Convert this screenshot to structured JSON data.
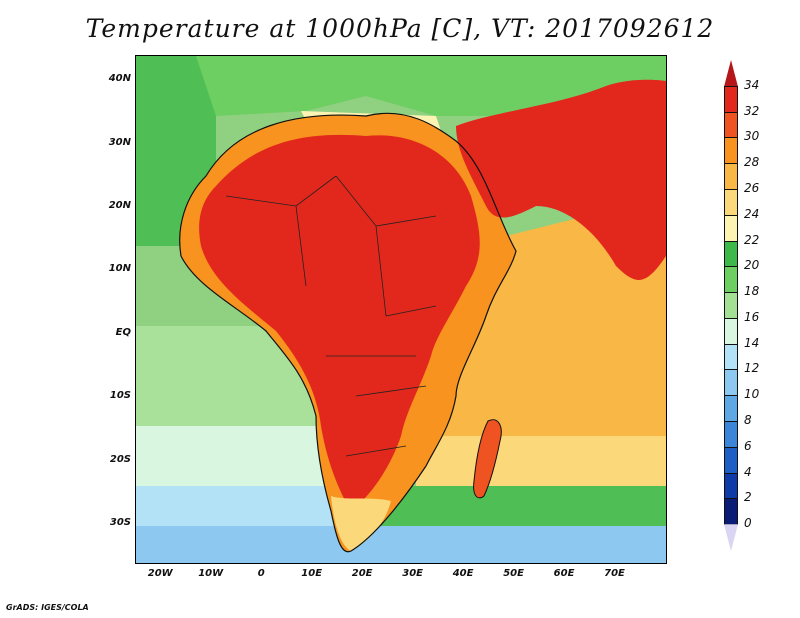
{
  "title": "Temperature at 1000hPa [C], VT: 2017092612",
  "credit": "GrADS: IGES/COLA",
  "map": {
    "lon_range": [
      -25,
      80
    ],
    "lat_range": [
      -36,
      44
    ],
    "lat_labels": [
      "40N",
      "30N",
      "20N",
      "10N",
      "EQ",
      "10S",
      "20S",
      "30S"
    ],
    "lat_values": [
      40,
      30,
      20,
      10,
      0,
      -10,
      -20,
      -30
    ],
    "lon_labels": [
      "20W",
      "10W",
      "0",
      "10E",
      "20E",
      "30E",
      "40E",
      "50E",
      "60E",
      "70E"
    ],
    "lon_values": [
      -20,
      -10,
      0,
      10,
      20,
      30,
      40,
      50,
      60,
      70
    ]
  },
  "colorbar": {
    "levels": [
      "34",
      "32",
      "30",
      "28",
      "26",
      "24",
      "22",
      "20",
      "18",
      "16",
      "14",
      "12",
      "10",
      "8",
      "6",
      "4",
      "2",
      "0"
    ],
    "colors": [
      "#b5161a",
      "#e2281c",
      "#f05322",
      "#f7931e",
      "#f9b846",
      "#fbd87a",
      "#fdf4b4",
      "#3db94b",
      "#6dce62",
      "#a4e094",
      "#d8f6e0",
      "#b3e2f6",
      "#8cc8f0",
      "#5ea8e6",
      "#3b86d9",
      "#1e5fc5",
      "#0d3ba8",
      "#0a1c75",
      "#d9d5f3"
    ]
  }
}
